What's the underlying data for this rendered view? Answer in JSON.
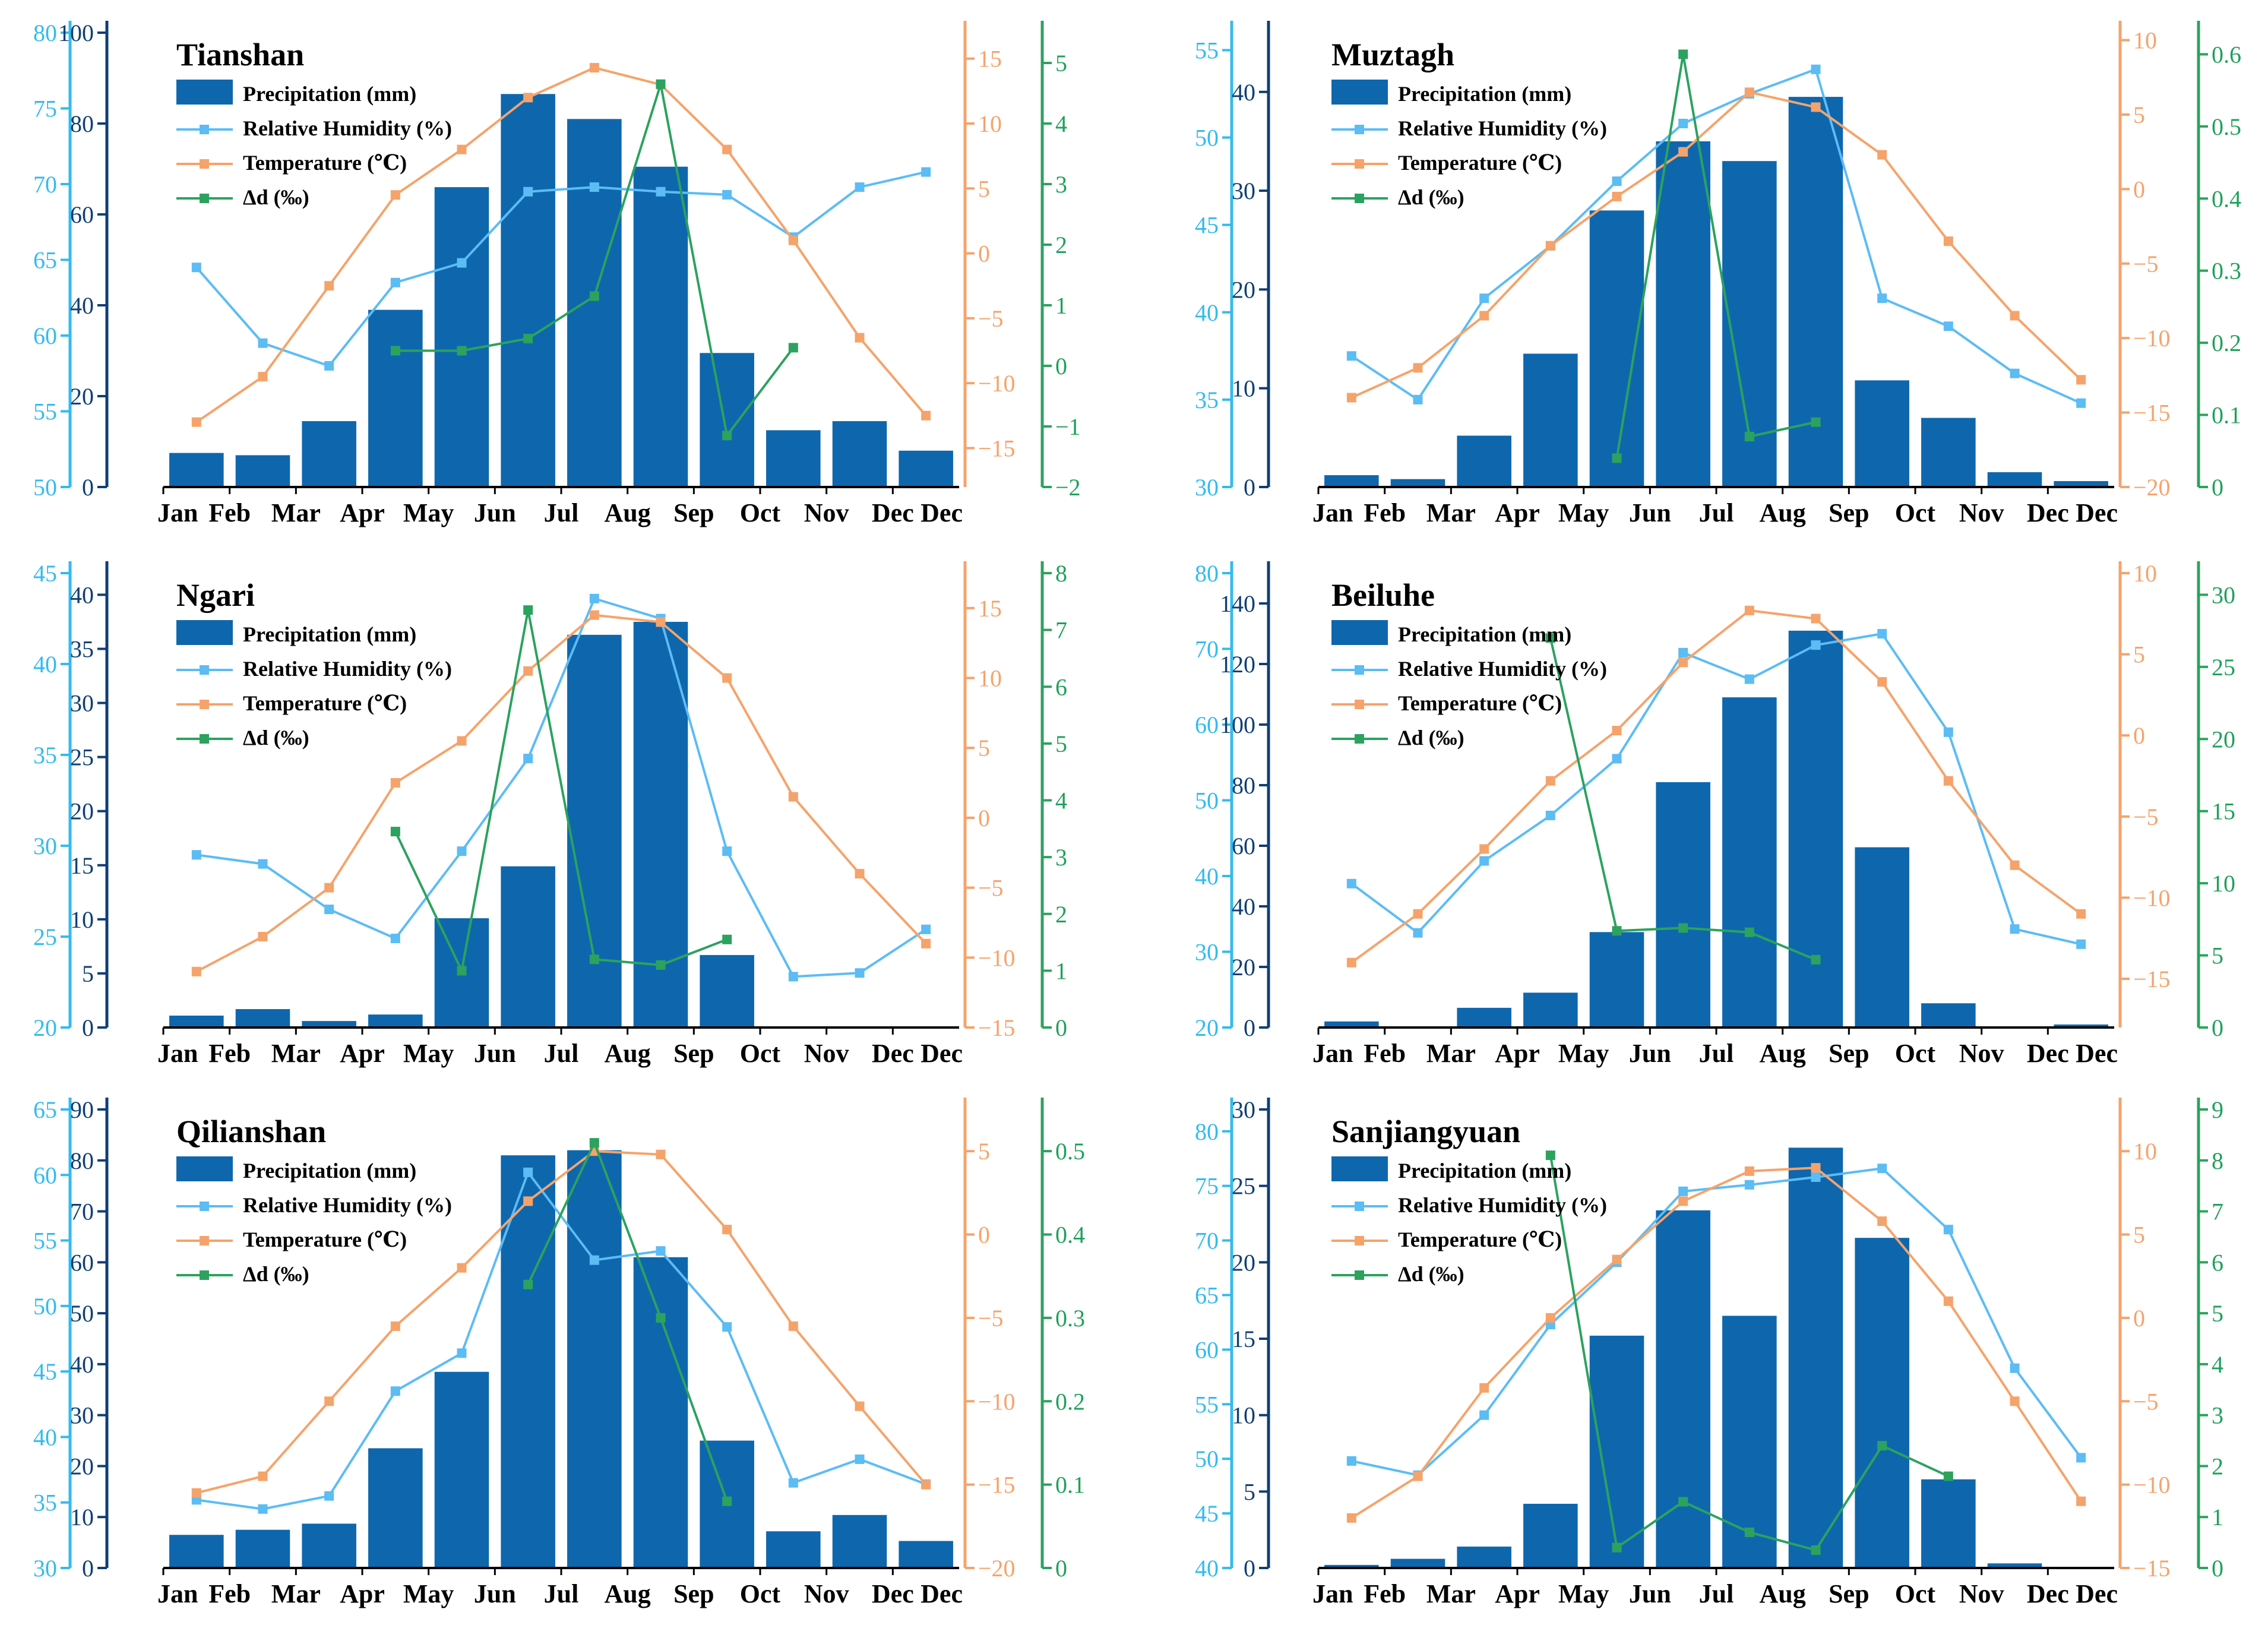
{
  "months": [
    "Jan",
    "Feb",
    "Mar",
    "Apr",
    "May",
    "Jun",
    "Jul",
    "Aug",
    "Sep",
    "Oct",
    "Nov",
    "Dec"
  ],
  "legend": [
    "Precipitation (mm)",
    "Relative Humidity (%)",
    "Temperature (℃)",
    "Δd (‰)"
  ],
  "colors": {
    "precip": "#0e67ad",
    "rh": "#5cbcf4",
    "temp": "#f5a36b",
    "dd": "#2ca25f",
    "rh_axis": "#33bbee",
    "precip_axis": "#0f3f73"
  },
  "chart_data": [
    {
      "type": "bar+line",
      "title": "Tianshan",
      "axes": {
        "rh": {
          "min": 50,
          "max": 80,
          "ticks": [
            50,
            55,
            60,
            65,
            70,
            75,
            80
          ]
        },
        "precip": {
          "min": 0,
          "max": 100,
          "ticks": [
            0,
            20,
            40,
            60,
            80,
            100
          ]
        },
        "temp": {
          "min": -18,
          "max": 17,
          "ticks": [
            -15,
            -10,
            -5,
            0,
            5,
            10,
            15
          ]
        },
        "dd": {
          "min": -2,
          "max": 5.5,
          "ticks": [
            -2,
            -1,
            0,
            1,
            2,
            3,
            4,
            5
          ]
        }
      },
      "precip": [
        7.5,
        7,
        14.5,
        39,
        66,
        86.5,
        81,
        70.5,
        29.5,
        12.5,
        14.5,
        8
      ],
      "rh": [
        64.5,
        59.5,
        58,
        63.5,
        64.8,
        69.5,
        69.8,
        69.5,
        69.3,
        66.5,
        69.8,
        70.8
      ],
      "temp": [
        -13,
        -9.5,
        -2.5,
        4.5,
        8,
        12,
        14.3,
        13,
        8,
        1,
        -6.5,
        -12.5
      ],
      "dd": [
        null,
        null,
        null,
        0.25,
        0.25,
        0.45,
        1.15,
        4.65,
        -1.15,
        0.3,
        null,
        null
      ]
    },
    {
      "type": "bar+line",
      "title": "Muztagh",
      "axes": {
        "rh": {
          "min": 30,
          "max": 56,
          "ticks": [
            30,
            35,
            40,
            45,
            50,
            55
          ]
        },
        "precip": {
          "min": 0,
          "max": 46,
          "ticks": [
            0,
            10,
            20,
            30,
            40
          ]
        },
        "temp": {
          "min": -20,
          "max": 10.5,
          "ticks": [
            -20,
            -15,
            -10,
            -5,
            0,
            5,
            10
          ]
        },
        "dd": {
          "min": 0,
          "max": 0.63,
          "ticks": [
            0,
            0.1,
            0.2,
            0.3,
            0.4,
            0.5,
            0.6
          ]
        }
      },
      "precip": [
        1.2,
        0.8,
        5.2,
        13.5,
        28,
        35,
        33,
        39.5,
        10.8,
        7,
        1.5,
        0.6
      ],
      "rh": [
        37.5,
        35,
        40.8,
        43.8,
        47.5,
        50.8,
        52.5,
        53.9,
        40.8,
        39.2,
        36.5,
        34.8
      ],
      "temp": [
        -14,
        -12,
        -8.5,
        -3.8,
        -0.5,
        2.5,
        6.5,
        5.5,
        2.3,
        -3.5,
        -8.5,
        -12.8
      ],
      "dd": [
        null,
        null,
        null,
        null,
        0.04,
        0.6,
        0.07,
        0.09,
        null,
        null,
        null,
        null
      ]
    },
    {
      "type": "bar+line",
      "title": "Ngari",
      "axes": {
        "rh": {
          "min": 20,
          "max": 45,
          "ticks": [
            20,
            25,
            30,
            35,
            40,
            45
          ]
        },
        "precip": {
          "min": 0,
          "max": 42,
          "ticks": [
            0,
            5,
            10,
            15,
            20,
            25,
            30,
            35,
            40
          ]
        },
        "temp": {
          "min": -15,
          "max": 17.5,
          "ticks": [
            -15,
            -10,
            -5,
            0,
            5,
            10,
            15
          ]
        },
        "dd": {
          "min": 0,
          "max": 8,
          "ticks": [
            0,
            1,
            2,
            3,
            4,
            5,
            6,
            7,
            8
          ]
        }
      },
      "precip": [
        1.1,
        1.7,
        0.6,
        1.2,
        10.1,
        14.9,
        36.3,
        37.5,
        6.7,
        0,
        0,
        0
      ],
      "rh": [
        29.5,
        29,
        26.5,
        24.9,
        29.7,
        34.8,
        43.6,
        42.5,
        29.7,
        22.8,
        23,
        25.4
      ],
      "temp": [
        -11,
        -8.5,
        -5,
        2.5,
        5.5,
        10.5,
        14.5,
        14,
        10,
        1.5,
        -4,
        -9
      ],
      "dd": [
        null,
        null,
        null,
        3.45,
        1,
        7.35,
        1.2,
        1.1,
        1.55,
        null,
        null,
        null
      ]
    },
    {
      "type": "bar+line",
      "title": "Beiluhe",
      "axes": {
        "rh": {
          "min": 20,
          "max": 80,
          "ticks": [
            20,
            30,
            40,
            50,
            60,
            70,
            80
          ]
        },
        "precip": {
          "min": 0,
          "max": 150,
          "ticks": [
            0,
            20,
            40,
            60,
            80,
            100,
            120,
            140
          ]
        },
        "temp": {
          "min": -18,
          "max": 10,
          "ticks": [
            -15,
            -10,
            -5,
            0,
            5,
            10
          ]
        },
        "dd": {
          "min": 0,
          "max": 31.5,
          "ticks": [
            0,
            5,
            10,
            15,
            20,
            25,
            30
          ]
        }
      },
      "precip": [
        2,
        0,
        6.5,
        11.5,
        31.5,
        81,
        109,
        131,
        59.5,
        8,
        0,
        1
      ],
      "rh": [
        39,
        32.5,
        42,
        48,
        55.5,
        69.5,
        66,
        70.5,
        72,
        59,
        33,
        31
      ],
      "temp": [
        -14,
        -11,
        -7,
        -2.8,
        0.3,
        4.5,
        7.7,
        7.2,
        3.3,
        -2.8,
        -8,
        -11
      ],
      "dd": [
        null,
        null,
        null,
        27,
        6.7,
        6.9,
        6.6,
        4.7,
        null,
        null,
        null,
        null
      ]
    },
    {
      "type": "bar+line",
      "title": "Qilianshan",
      "axes": {
        "rh": {
          "min": 30,
          "max": 65,
          "ticks": [
            30,
            35,
            40,
            45,
            50,
            55,
            60,
            65
          ]
        },
        "precip": {
          "min": 0,
          "max": 90,
          "ticks": [
            0,
            10,
            20,
            30,
            40,
            50,
            60,
            70,
            80,
            90
          ]
        },
        "temp": {
          "min": -20,
          "max": 7.5,
          "ticks": [
            -20,
            -15,
            -10,
            -5,
            0,
            5
          ]
        },
        "dd": {
          "min": 0,
          "max": 0.55,
          "ticks": [
            0,
            0.1,
            0.2,
            0.3,
            0.4,
            0.5
          ]
        }
      },
      "precip": [
        6.5,
        7.5,
        8.7,
        23.5,
        38.5,
        81,
        82,
        61,
        25,
        7.2,
        10.4,
        5.3
      ],
      "rh": [
        35.2,
        34.5,
        35.5,
        43.5,
        46.4,
        60.2,
        53.5,
        54.2,
        48.4,
        36.5,
        38.3,
        36.4
      ],
      "temp": [
        -15.5,
        -14.5,
        -10,
        -5.5,
        -2,
        2,
        5,
        4.8,
        0.3,
        -5.5,
        -10.3,
        -15
      ],
      "dd": [
        null,
        null,
        null,
        null,
        null,
        0.34,
        0.51,
        0.3,
        0.08,
        null,
        null,
        null
      ]
    },
    {
      "type": "bar+line",
      "title": "Sanjiangyuan",
      "axes": {
        "rh": {
          "min": 40,
          "max": 82,
          "ticks": [
            40,
            45,
            50,
            55,
            60,
            65,
            70,
            75,
            80
          ]
        },
        "precip": {
          "min": 0,
          "max": 30,
          "ticks": [
            0,
            5,
            10,
            15,
            20,
            25,
            30
          ]
        },
        "temp": {
          "min": -15,
          "max": 12.5,
          "ticks": [
            -15,
            -10,
            -5,
            0,
            5,
            10
          ]
        },
        "dd": {
          "min": 0,
          "max": 9,
          "ticks": [
            0,
            1,
            2,
            3,
            4,
            5,
            6,
            7,
            8,
            9
          ]
        }
      },
      "precip": [
        0.2,
        0.6,
        1.4,
        4.2,
        15.2,
        23.4,
        16.5,
        27.5,
        21.6,
        5.8,
        0.3,
        0
      ],
      "rh": [
        49.8,
        48.5,
        54,
        62.3,
        68,
        74.5,
        75.1,
        75.8,
        76.6,
        71,
        58.3,
        50.1
      ],
      "temp": [
        -12,
        -9.5,
        -4.2,
        0,
        3.5,
        7,
        8.8,
        9,
        5.8,
        1,
        -5,
        -11
      ],
      "dd": [
        null,
        null,
        null,
        8.1,
        0.4,
        1.3,
        0.7,
        0.35,
        2.4,
        1.8,
        null,
        null
      ]
    }
  ]
}
